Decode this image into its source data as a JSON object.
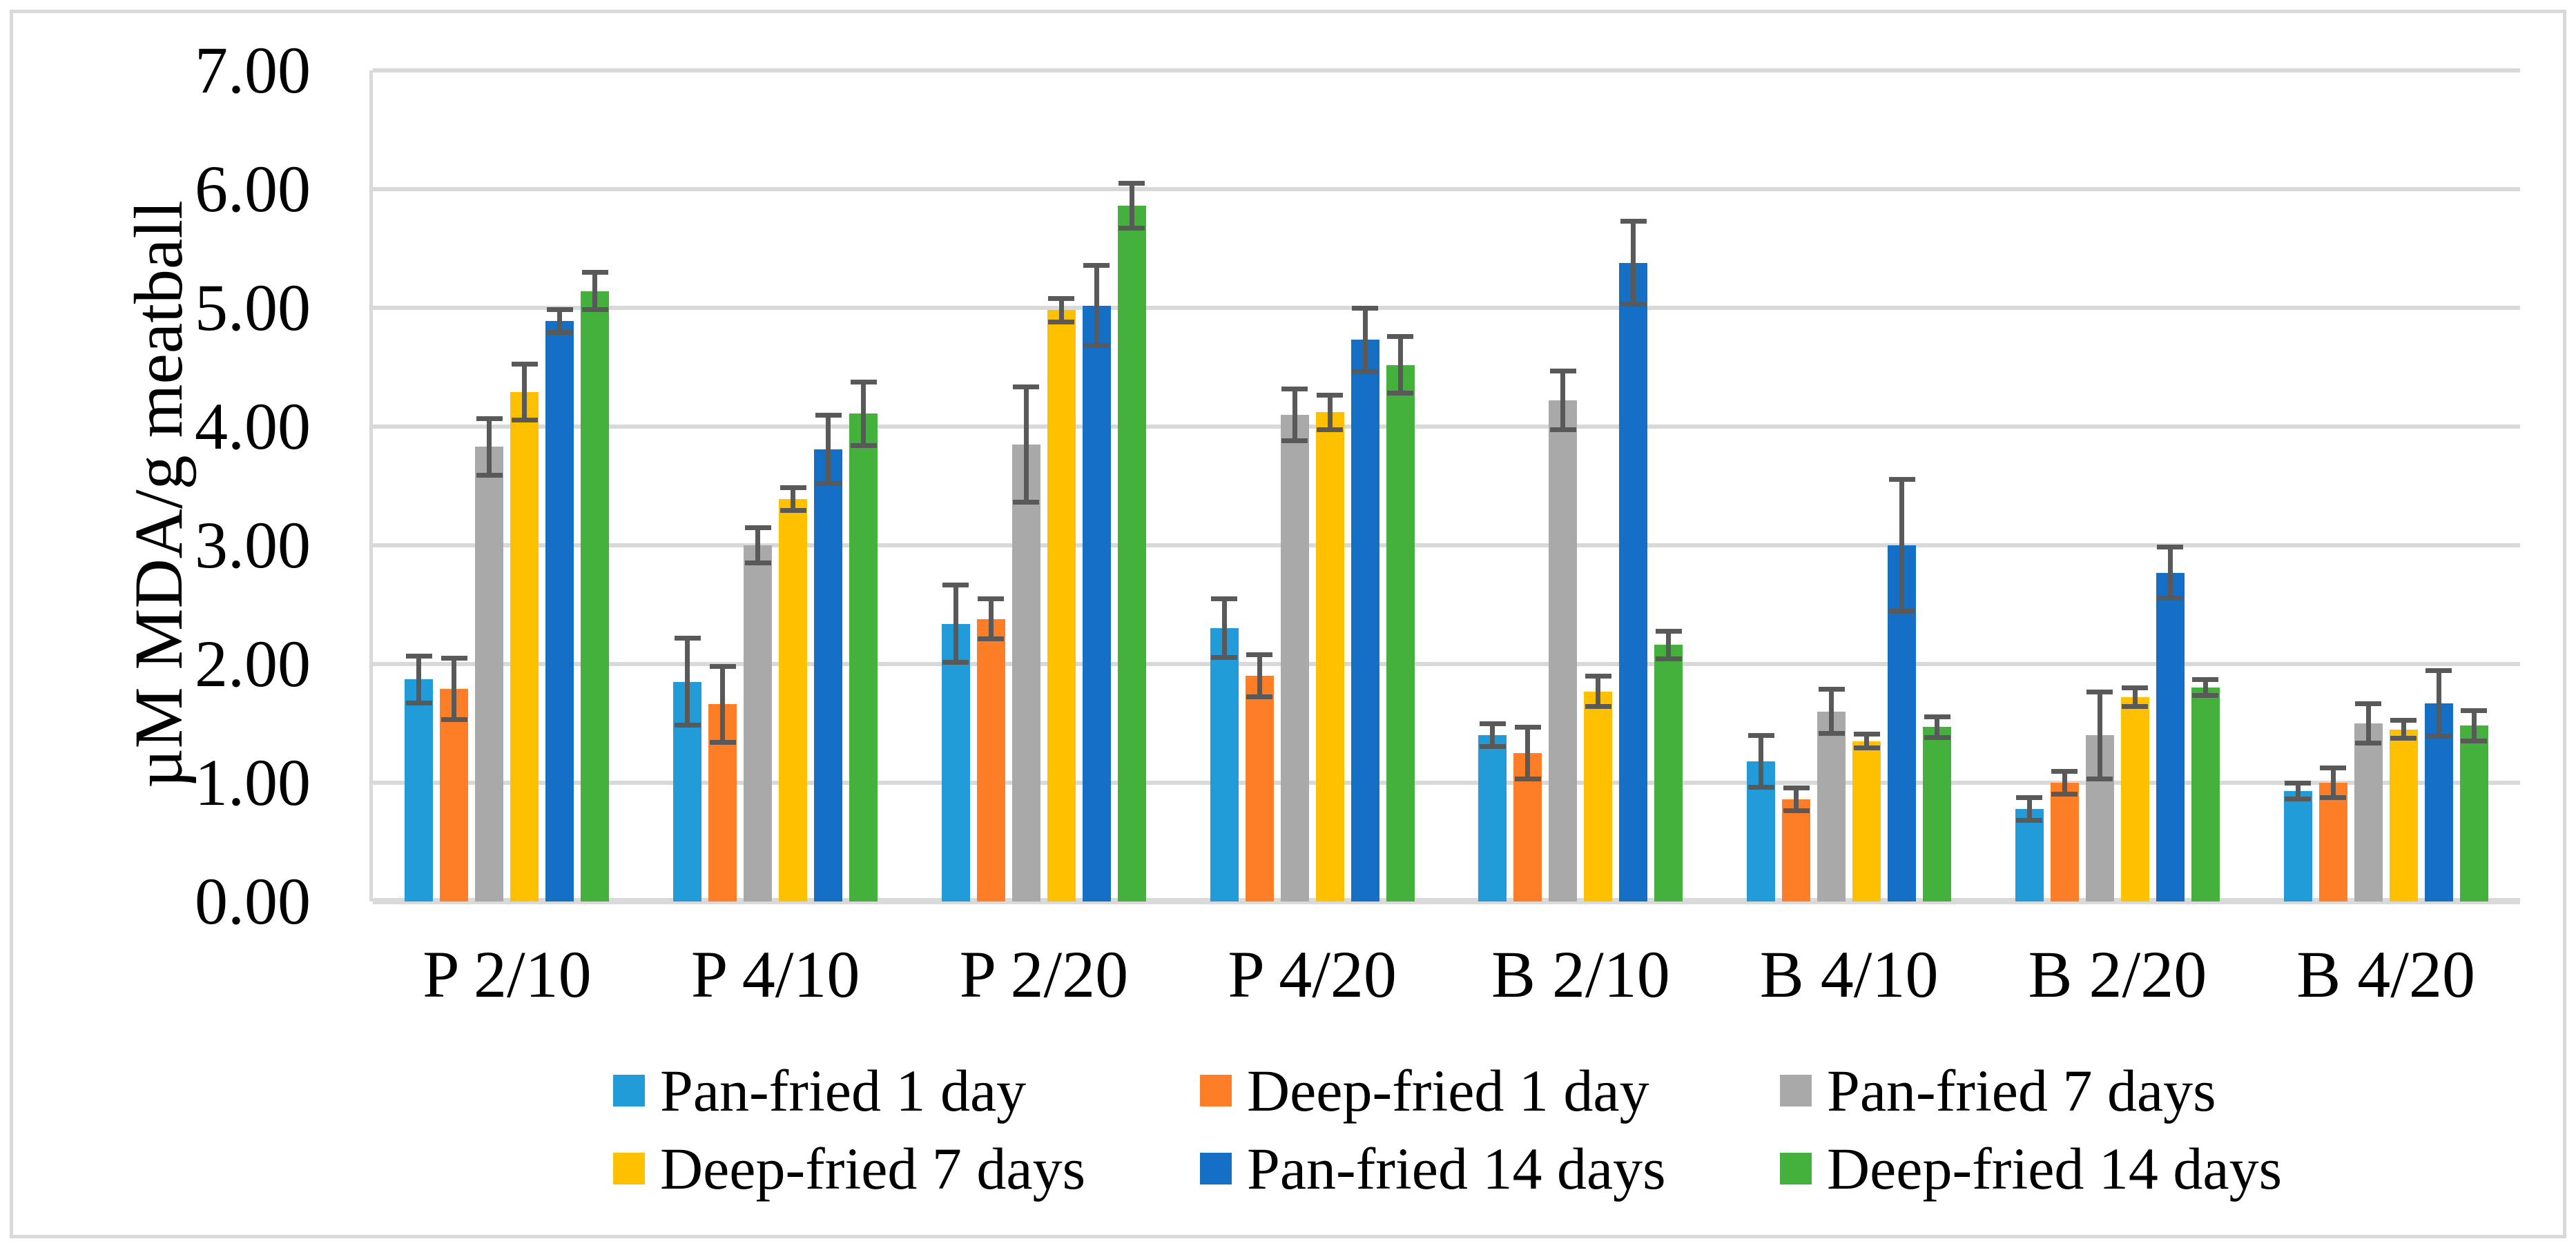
{
  "chart_data": {
    "type": "bar",
    "title": "",
    "xlabel": "",
    "ylabel": "µM MDA/g meatball",
    "ylim": [
      0,
      7
    ],
    "ytick_step": 1.0,
    "ytick_labels": [
      "0.00",
      "1.00",
      "2.00",
      "3.00",
      "4.00",
      "5.00",
      "6.00",
      "7.00"
    ],
    "grid": "horizontal gridlines on",
    "legend_position": "bottom, two rows, three columns",
    "categories": [
      "P 2/10",
      "P 4/10",
      "P 2/20",
      "P 4/20",
      "B 2/10",
      "B 4/10",
      "B 2/20",
      "B 4/20"
    ],
    "series": [
      {
        "name": "Pan-fried 1 day",
        "color": "#219cd8",
        "values": [
          1.87,
          1.85,
          2.34,
          2.3,
          1.4,
          1.18,
          0.78,
          0.93
        ],
        "errors": [
          0.2,
          0.37,
          0.33,
          0.25,
          0.1,
          0.22,
          0.1,
          0.07
        ]
      },
      {
        "name": "Deep-fried 1 day",
        "color": "#fd7e27",
        "values": [
          1.79,
          1.66,
          2.38,
          1.9,
          1.25,
          0.86,
          1.0,
          1.0
        ],
        "errors": [
          0.26,
          0.32,
          0.17,
          0.18,
          0.22,
          0.1,
          0.1,
          0.13
        ]
      },
      {
        "name": "Pan-fried 7 days",
        "color": "#a9a9a9",
        "values": [
          3.83,
          3.0,
          3.85,
          4.1,
          4.22,
          1.6,
          1.4,
          1.5
        ],
        "errors": [
          0.24,
          0.15,
          0.49,
          0.22,
          0.25,
          0.19,
          0.37,
          0.17
        ]
      },
      {
        "name": "Deep-fried 7 days",
        "color": "#ffc000",
        "values": [
          4.29,
          3.39,
          4.98,
          4.12,
          1.77,
          1.35,
          1.72,
          1.45
        ],
        "errors": [
          0.24,
          0.1,
          0.1,
          0.15,
          0.13,
          0.06,
          0.08,
          0.08
        ]
      },
      {
        "name": "Pan-fried 14 days",
        "color": "#156fc5",
        "values": [
          4.89,
          3.81,
          5.02,
          4.73,
          5.38,
          3.0,
          2.77,
          1.67
        ],
        "errors": [
          0.1,
          0.29,
          0.34,
          0.27,
          0.35,
          0.56,
          0.22,
          0.28
        ]
      },
      {
        "name": "Deep-fried 14 days",
        "color": "#43b13c",
        "values": [
          5.14,
          4.11,
          5.86,
          4.52,
          2.16,
          1.47,
          1.8,
          1.48
        ],
        "errors": [
          0.16,
          0.27,
          0.19,
          0.24,
          0.12,
          0.09,
          0.07,
          0.13
        ]
      }
    ],
    "error_bar_color": "#595959",
    "gridline_color": "#d9d9d9",
    "axis_line_color": "#d9d9d9",
    "frame_border_color": "#d9d9d9",
    "background_color": "#ffffff"
  }
}
